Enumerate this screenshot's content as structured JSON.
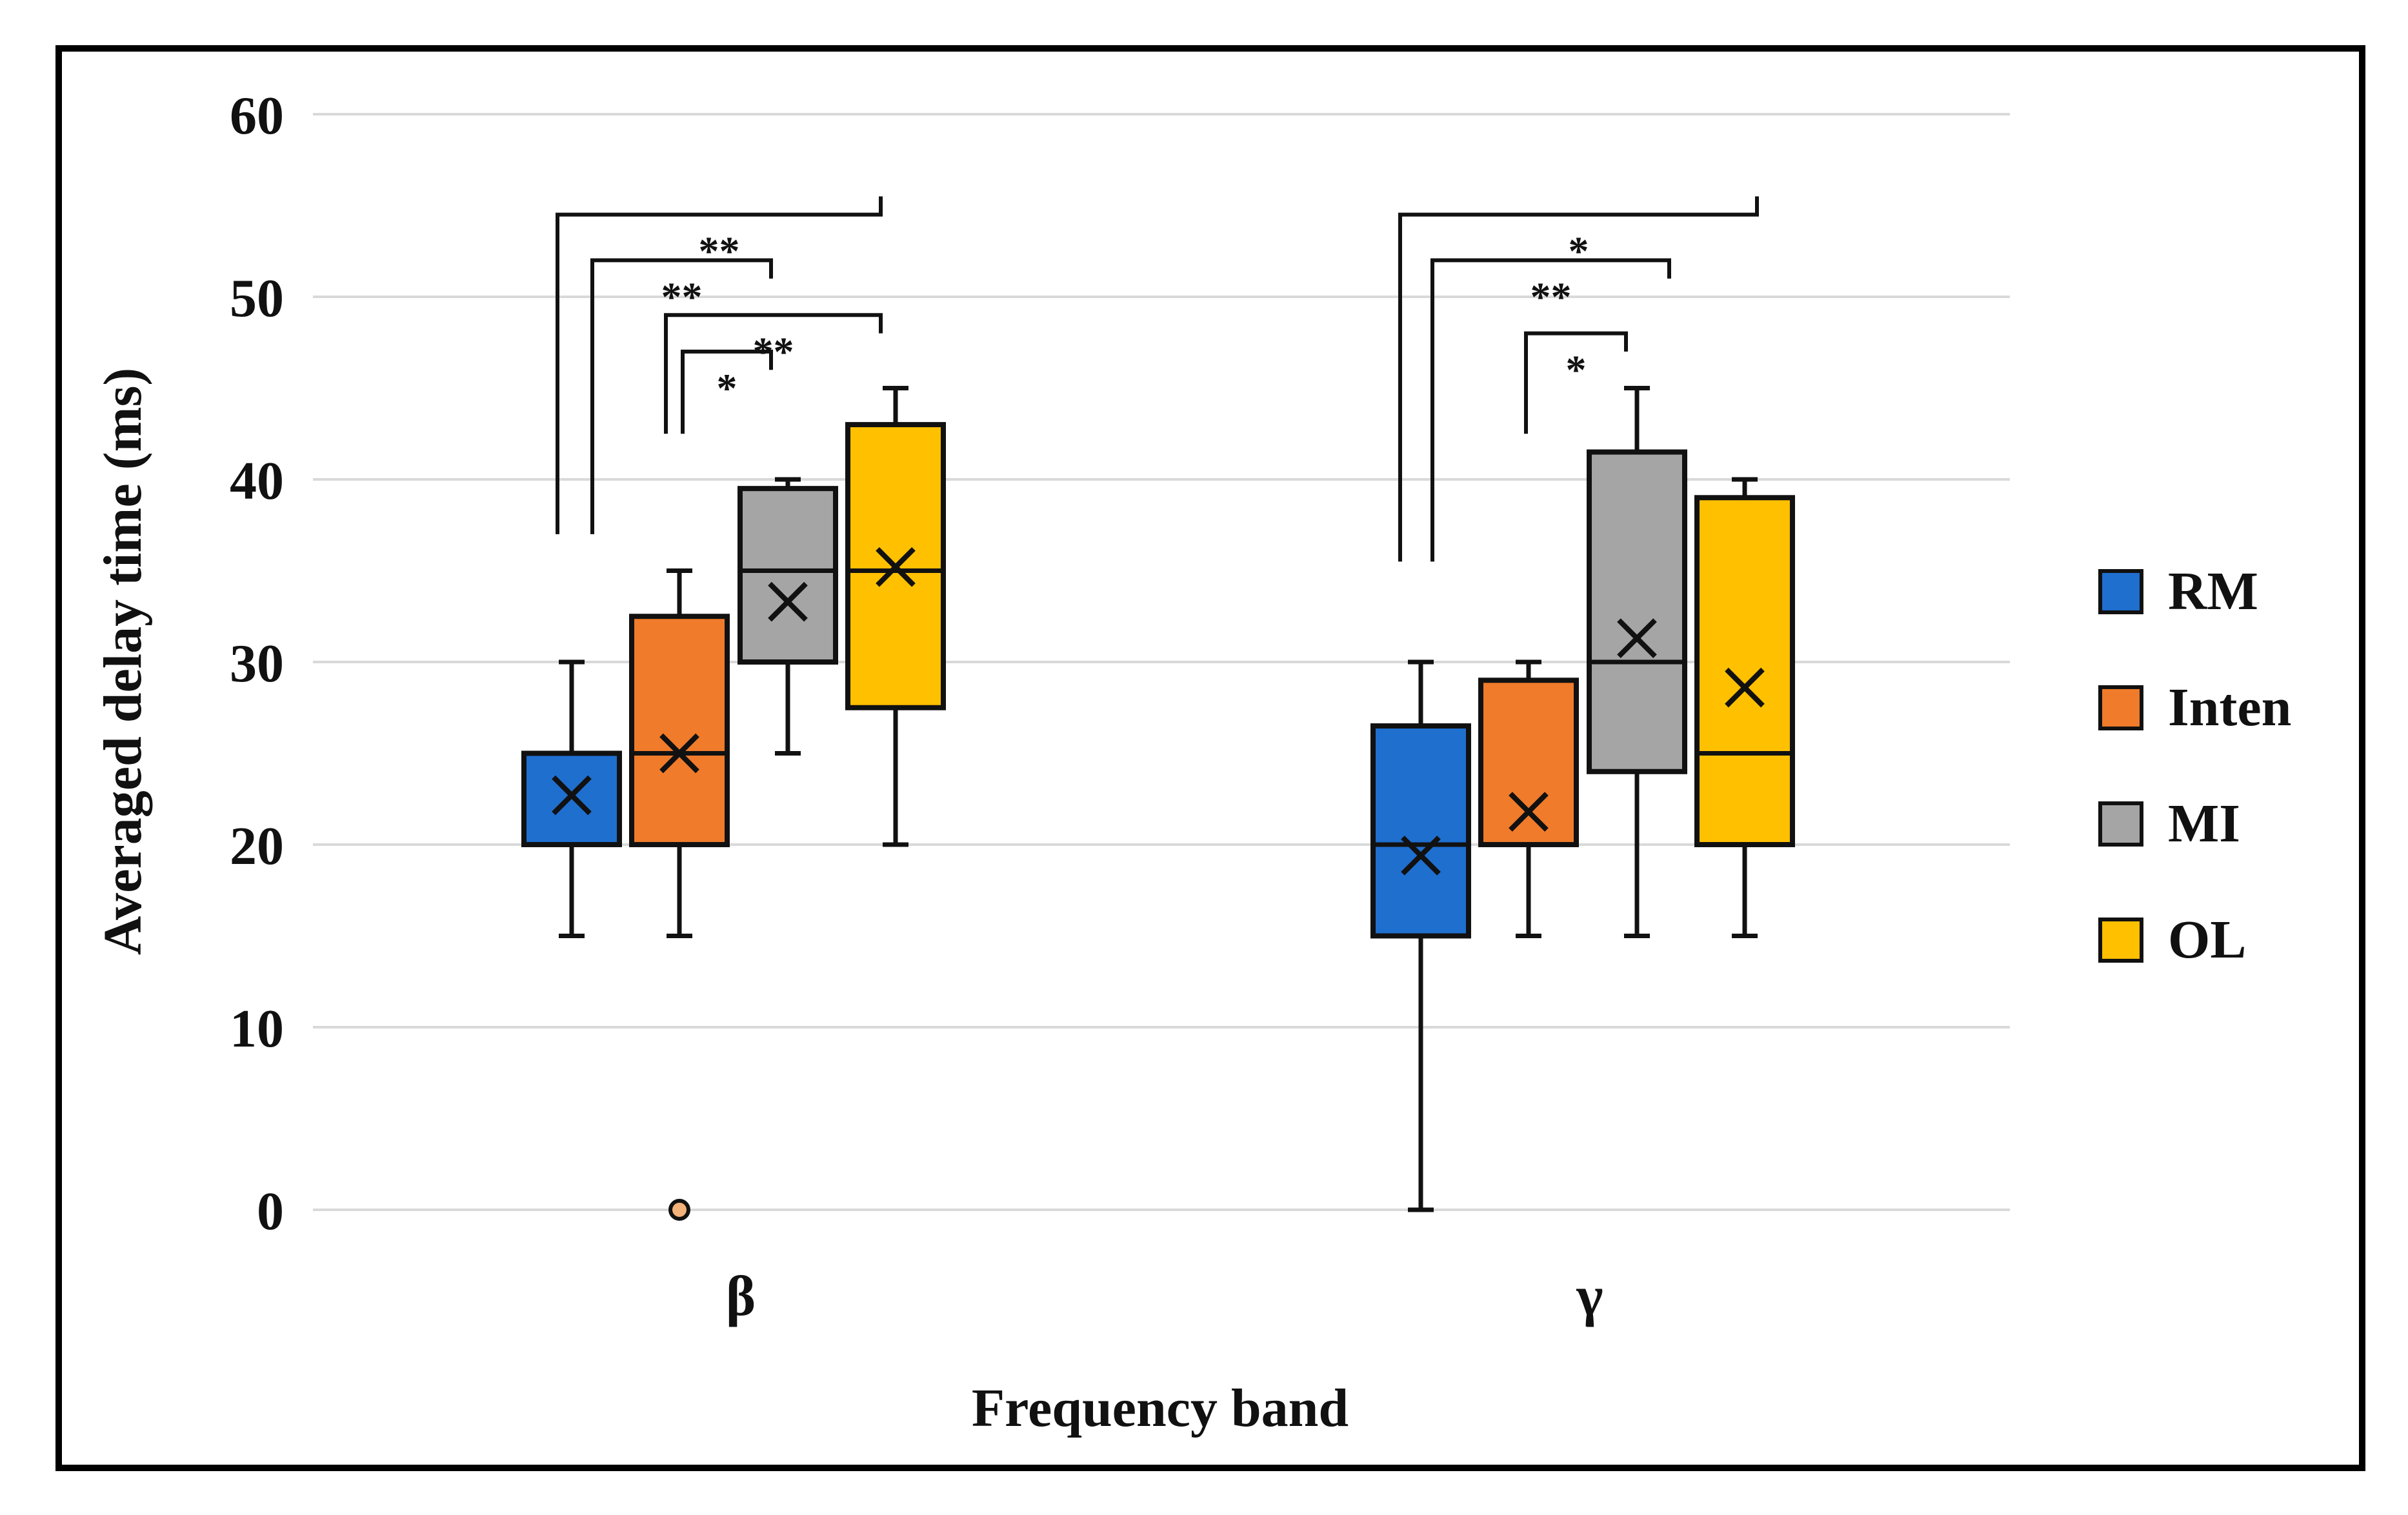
{
  "chart_data": {
    "type": "box",
    "title": "",
    "xlabel": "Frequency band",
    "ylabel": "Averaged delay time (ms)",
    "ylim": [
      0,
      60
    ],
    "yticks": [
      "0",
      "10",
      "20",
      "30",
      "40",
      "50",
      "60"
    ],
    "grid": true,
    "legend_position": "right",
    "categories": [
      "β",
      "γ"
    ],
    "series": [
      {
        "name": "RM",
        "color": "#1f6fcf",
        "boxes": [
          {
            "min": 15,
            "q1": 20,
            "median": 20,
            "q3": 25,
            "max": 30,
            "mean": 22.7
          },
          {
            "min": 0,
            "q1": 15,
            "median": 20,
            "q3": 26.5,
            "max": 30,
            "mean": 19.4
          }
        ]
      },
      {
        "name": "Inten",
        "color": "#f07b2a",
        "boxes": [
          {
            "min": 15,
            "q1": 20,
            "median": 25,
            "q3": 32.5,
            "max": 35,
            "mean": 25.0,
            "outliers": [
              0
            ]
          },
          {
            "min": 15,
            "q1": 20,
            "median": 20,
            "q3": 29,
            "max": 30,
            "mean": 21.8
          }
        ]
      },
      {
        "name": "MI",
        "color": "#a5a5a5",
        "boxes": [
          {
            "min": 25,
            "q1": 30,
            "median": 35,
            "q3": 39.5,
            "max": 40,
            "mean": 33.3
          },
          {
            "min": 15,
            "q1": 24,
            "median": 30,
            "q3": 41.5,
            "max": 45,
            "mean": 31.3
          }
        ]
      },
      {
        "name": "OL",
        "color": "#ffc000",
        "boxes": [
          {
            "min": 20,
            "q1": 27.5,
            "median": 35,
            "q3": 43,
            "max": 45,
            "mean": 35.2
          },
          {
            "min": 15,
            "q1": 20,
            "median": 25,
            "q3": 39,
            "max": 40,
            "mean": 28.6
          }
        ]
      }
    ],
    "significance": [
      {
        "category": 0,
        "from": "RM",
        "to": "OL",
        "label": "**",
        "level": 54.5
      },
      {
        "category": 0,
        "from": "RM",
        "to": "MI",
        "label": "**",
        "level": 52.0
      },
      {
        "category": 0,
        "from": "Inten",
        "to": "OL",
        "label": "**",
        "level": 49.0
      },
      {
        "category": 0,
        "from": "Inten",
        "to": "MI",
        "label": "*",
        "level": 47.0
      },
      {
        "category": 1,
        "from": "RM",
        "to": "OL",
        "label": "*",
        "level": 54.5
      },
      {
        "category": 1,
        "from": "RM",
        "to": "MI",
        "label": "**",
        "level": 52.0
      },
      {
        "category": 1,
        "from": "Inten",
        "to": "MI",
        "label": "*",
        "level": 48.0
      }
    ]
  }
}
